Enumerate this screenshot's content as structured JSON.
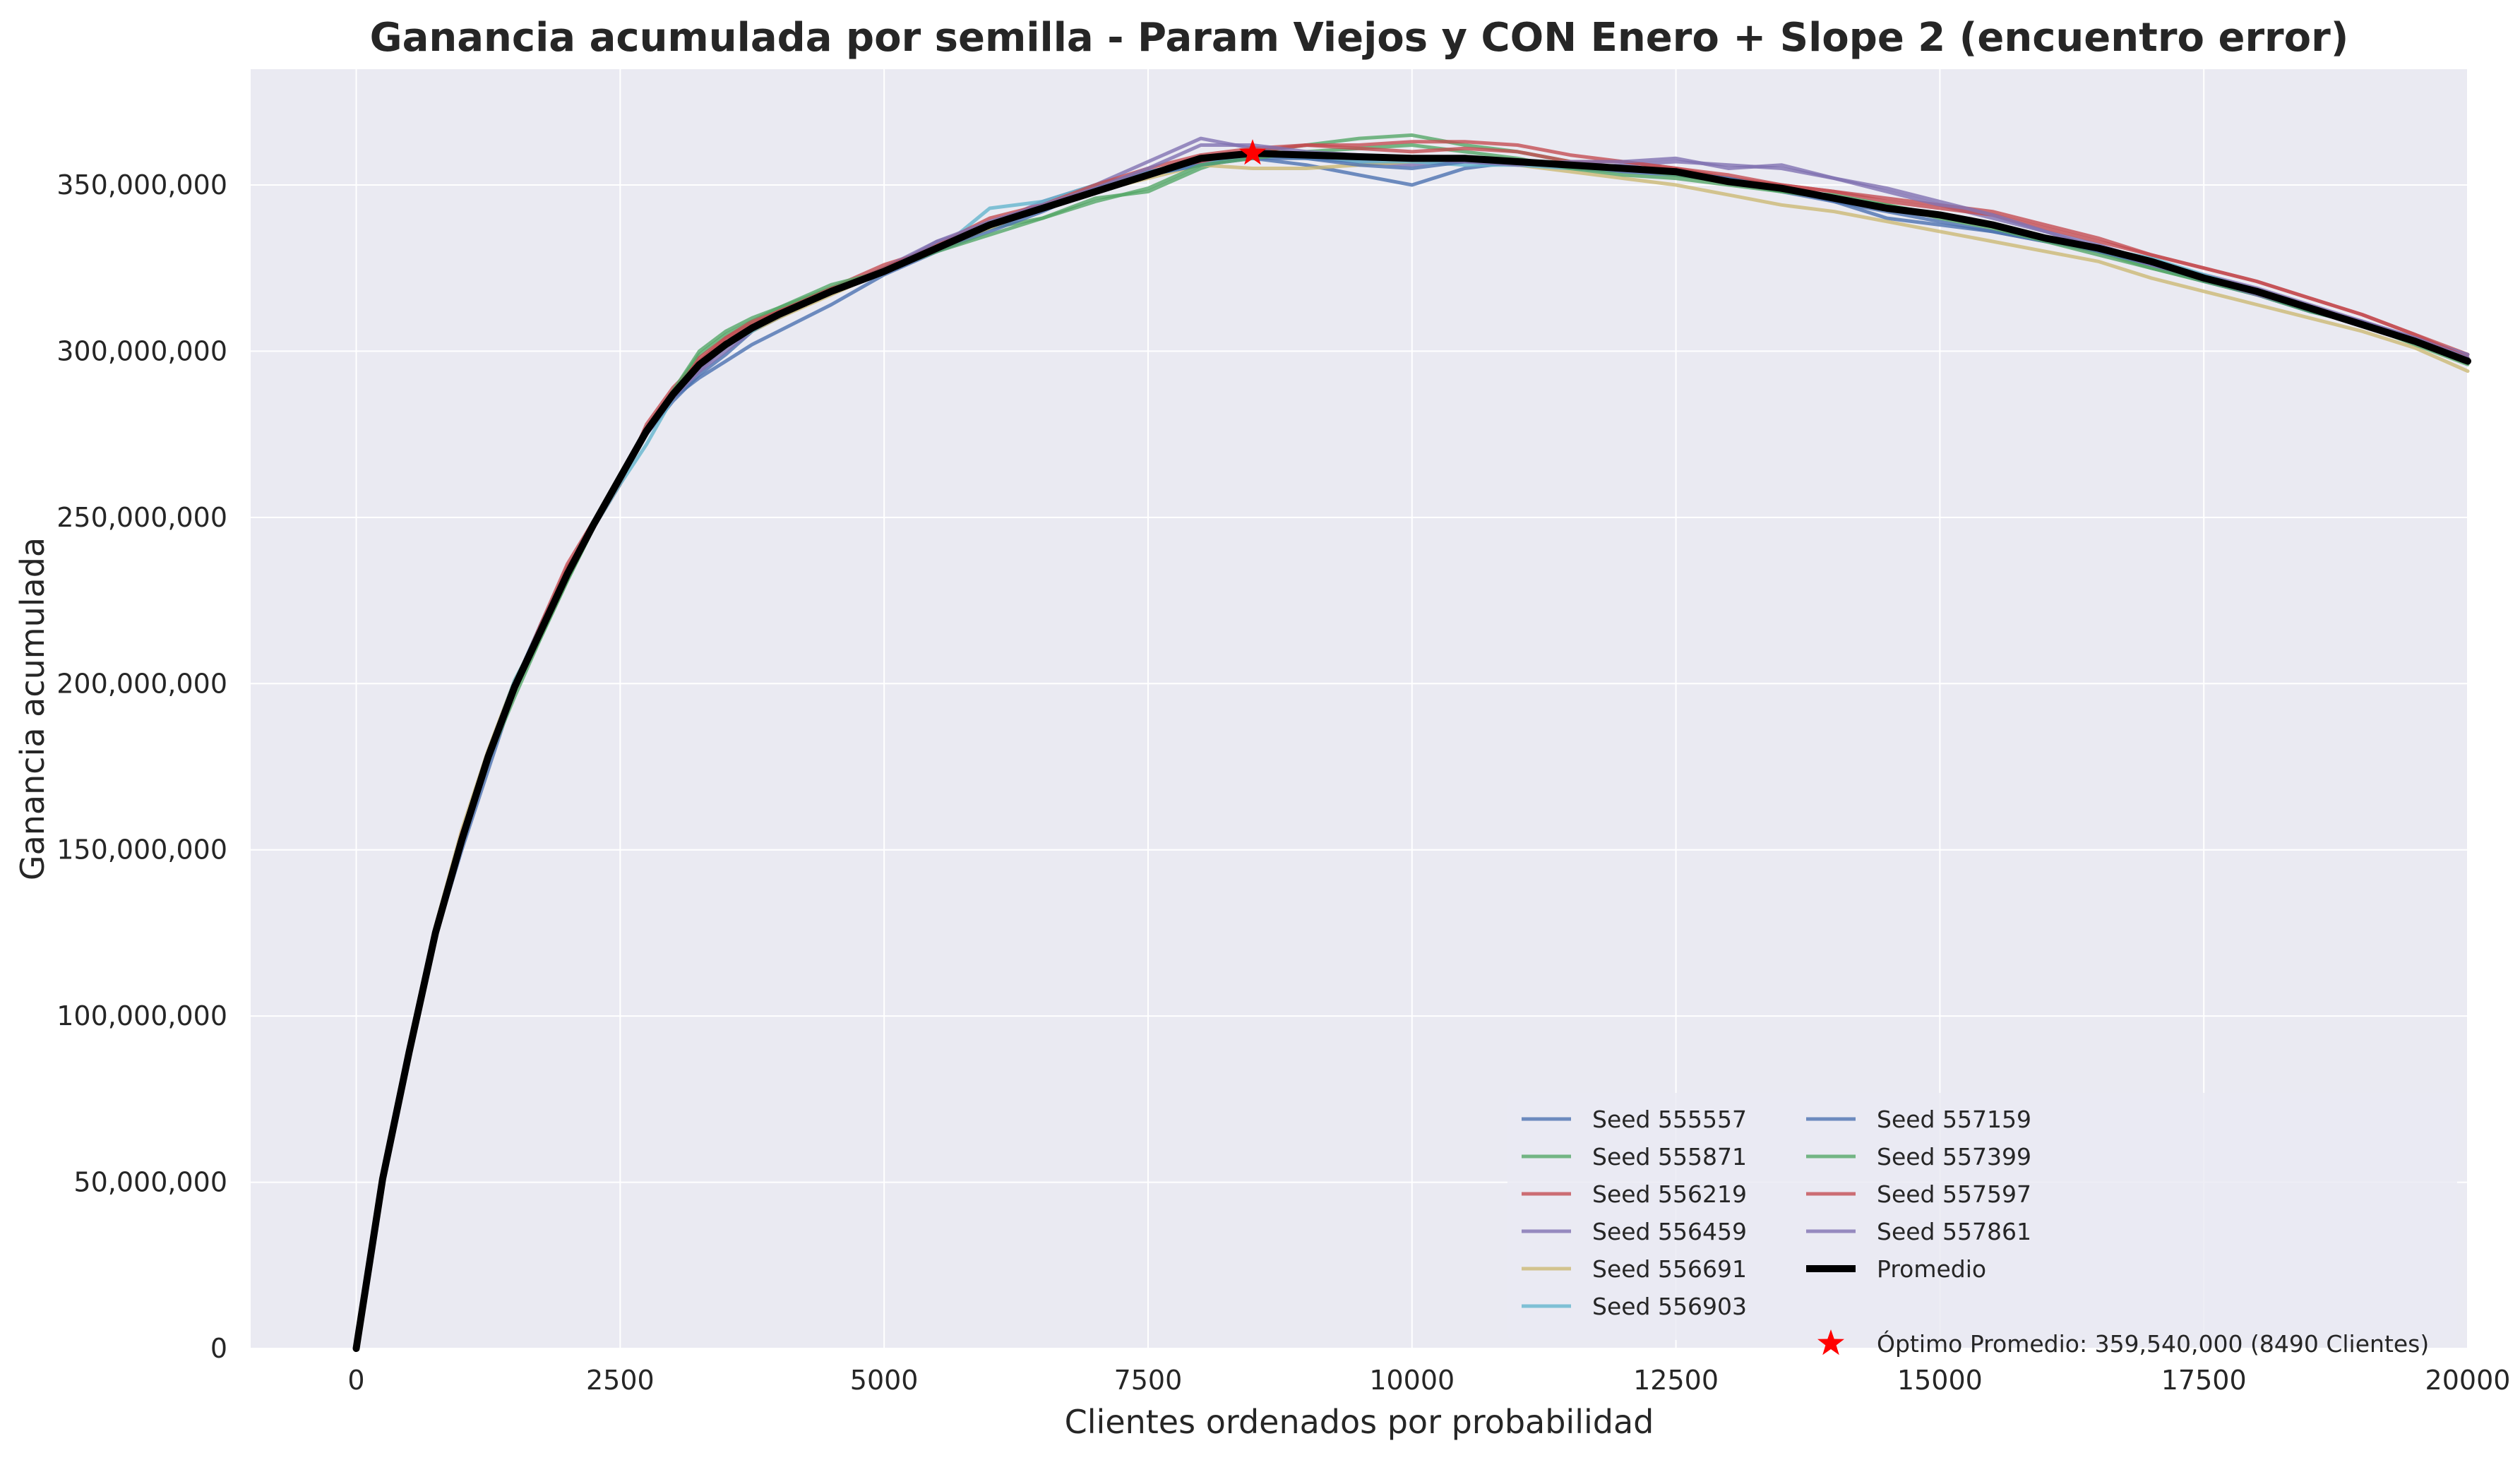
{
  "chart_data": {
    "type": "line",
    "title": "Ganancia acumulada por semilla - Param Viejos y CON Enero + Slope 2 (encuentro error)",
    "xlabel": "Clientes ordenados por probabilidad",
    "ylabel": "Ganancia acumulada",
    "xlim": [
      -1000,
      20000
    ],
    "ylim": [
      0,
      350000000
    ],
    "x_ticks": [
      0,
      2500,
      5000,
      7500,
      10000,
      12500,
      15000,
      17500,
      20000
    ],
    "x_tick_labels": [
      "0",
      "2500",
      "5000",
      "7500",
      "10000",
      "12500",
      "15000",
      "17500",
      "20000"
    ],
    "y_ticks": [
      0,
      50000000,
      100000000,
      150000000,
      200000000,
      250000000,
      300000000,
      350000000
    ],
    "y_tick_labels": [
      "0",
      "50,000,000",
      "100,000,000",
      "150,000,000",
      "200,000,000",
      "250,000,000",
      "300,000,000",
      "350,000,000"
    ],
    "grid": true,
    "legend_position": "lower-right",
    "legend_columns": 2,
    "x": [
      0,
      250,
      500,
      750,
      1000,
      1250,
      1500,
      1750,
      2000,
      2250,
      2500,
      2750,
      3000,
      3250,
      3500,
      3750,
      4000,
      4500,
      5000,
      5500,
      6000,
      6500,
      7000,
      7500,
      8000,
      8490,
      9000,
      9500,
      10000,
      10500,
      11000,
      11500,
      12000,
      12500,
      13000,
      13500,
      14000,
      14500,
      15000,
      15500,
      16000,
      16500,
      17000,
      17500,
      18000,
      18500,
      19000,
      19500,
      20000
    ],
    "series": [
      {
        "name": "Seed 555557",
        "color": "#4c72b0",
        "values": [
          0,
          50000000,
          88000000,
          125000000,
          153000000,
          178000000,
          200000000,
          218000000,
          234000000,
          249000000,
          262000000,
          275000000,
          285000000,
          293000000,
          299000000,
          306000000,
          310000000,
          318000000,
          325000000,
          330000000,
          338000000,
          343000000,
          350000000,
          354000000,
          357000000,
          358000000,
          356000000,
          353000000,
          350000000,
          355000000,
          357000000,
          355000000,
          354000000,
          353000000,
          351000000,
          348000000,
          345000000,
          340000000,
          338000000,
          336000000,
          333000000,
          331000000,
          326000000,
          321000000,
          317000000,
          312000000,
          309000000,
          303000000,
          298000000
        ]
      },
      {
        "name": "Seed 555871",
        "color": "#55a868",
        "values": [
          0,
          51000000,
          87000000,
          126000000,
          152000000,
          176000000,
          198000000,
          214000000,
          231000000,
          247000000,
          261000000,
          277000000,
          288000000,
          299000000,
          305000000,
          309000000,
          313000000,
          319000000,
          324000000,
          330000000,
          337000000,
          340000000,
          346000000,
          348000000,
          355000000,
          360000000,
          362000000,
          364000000,
          365000000,
          362000000,
          360000000,
          357000000,
          355000000,
          353000000,
          351000000,
          348000000,
          346000000,
          344000000,
          341000000,
          338000000,
          334000000,
          330000000,
          325000000,
          321000000,
          318000000,
          313000000,
          308000000,
          303000000,
          298000000
        ]
      },
      {
        "name": "Seed 556219",
        "color": "#c44e52",
        "values": [
          0,
          52000000,
          91000000,
          124000000,
          154000000,
          178000000,
          200000000,
          217000000,
          235000000,
          247000000,
          260000000,
          278000000,
          289000000,
          297000000,
          304000000,
          309000000,
          312000000,
          319000000,
          326000000,
          331000000,
          338000000,
          343000000,
          350000000,
          353000000,
          357000000,
          360000000,
          362000000,
          362000000,
          363000000,
          363000000,
          362000000,
          359000000,
          357000000,
          355000000,
          352000000,
          350000000,
          348000000,
          346000000,
          344000000,
          342000000,
          338000000,
          334000000,
          329000000,
          325000000,
          321000000,
          316000000,
          311000000,
          305000000,
          299000000
        ]
      },
      {
        "name": "Seed 556459",
        "color": "#8172b2",
        "values": [
          0,
          50000000,
          89000000,
          125000000,
          152000000,
          177000000,
          199000000,
          217000000,
          233000000,
          248000000,
          262000000,
          276000000,
          287000000,
          294000000,
          300000000,
          306000000,
          311000000,
          318000000,
          325000000,
          333000000,
          338000000,
          345000000,
          350000000,
          357000000,
          364000000,
          361000000,
          358000000,
          357000000,
          356000000,
          358000000,
          356000000,
          355000000,
          356000000,
          357000000,
          356000000,
          355000000,
          352000000,
          348000000,
          344000000,
          340000000,
          336000000,
          332000000,
          327000000,
          323000000,
          319000000,
          314000000,
          309000000,
          304000000,
          299000000
        ]
      },
      {
        "name": "Seed 556691",
        "color": "#ccb974",
        "values": [
          0,
          53000000,
          90000000,
          127000000,
          156000000,
          180000000,
          201000000,
          216000000,
          232000000,
          249000000,
          263000000,
          276000000,
          286000000,
          296000000,
          302000000,
          306000000,
          310000000,
          317000000,
          324000000,
          330000000,
          337000000,
          343000000,
          348000000,
          352000000,
          356000000,
          355000000,
          355000000,
          356000000,
          357000000,
          358000000,
          356000000,
          354000000,
          352000000,
          350000000,
          347000000,
          344000000,
          342000000,
          339000000,
          336000000,
          333000000,
          330000000,
          327000000,
          322000000,
          318000000,
          314000000,
          310000000,
          306000000,
          301000000,
          294000000
        ]
      },
      {
        "name": "Seed 556903",
        "color": "#64b5cd",
        "values": [
          0,
          50000000,
          88000000,
          125000000,
          153000000,
          179000000,
          201000000,
          216000000,
          233000000,
          247000000,
          260000000,
          272000000,
          286000000,
          296000000,
          302000000,
          306000000,
          311000000,
          318000000,
          325000000,
          330000000,
          343000000,
          345000000,
          350000000,
          353000000,
          356000000,
          359000000,
          358000000,
          357000000,
          357000000,
          356000000,
          356000000,
          355000000,
          355000000,
          354000000,
          352000000,
          349000000,
          346000000,
          343000000,
          341000000,
          338000000,
          334000000,
          331000000,
          328000000,
          323000000,
          318000000,
          313000000,
          308000000,
          303000000,
          298000000
        ]
      },
      {
        "name": "Seed 557159",
        "color": "#4c72b0",
        "values": [
          0,
          50000000,
          88000000,
          124000000,
          150000000,
          174000000,
          198000000,
          216000000,
          233000000,
          248000000,
          262000000,
          275000000,
          286000000,
          292000000,
          297000000,
          302000000,
          306000000,
          314000000,
          323000000,
          330000000,
          336000000,
          342000000,
          349000000,
          353000000,
          356000000,
          358000000,
          358000000,
          356000000,
          355000000,
          357000000,
          357000000,
          356000000,
          355000000,
          354000000,
          352000000,
          349000000,
          345000000,
          342000000,
          339000000,
          336000000,
          333000000,
          330000000,
          326000000,
          321000000,
          317000000,
          312000000,
          308000000,
          303000000,
          297000000
        ]
      },
      {
        "name": "Seed 557399",
        "color": "#55a868",
        "values": [
          0,
          51000000,
          88000000,
          126000000,
          153000000,
          177000000,
          196000000,
          214000000,
          231000000,
          247000000,
          262000000,
          276000000,
          288000000,
          300000000,
          306000000,
          310000000,
          313000000,
          320000000,
          324000000,
          330000000,
          335000000,
          340000000,
          345000000,
          349000000,
          356000000,
          358000000,
          360000000,
          361000000,
          362000000,
          360000000,
          358000000,
          355000000,
          353000000,
          352000000,
          350000000,
          348000000,
          347000000,
          344000000,
          340000000,
          337000000,
          333000000,
          329000000,
          325000000,
          321000000,
          317000000,
          312000000,
          308000000,
          302000000,
          296000000
        ]
      },
      {
        "name": "Seed 557597",
        "color": "#c44e52",
        "values": [
          0,
          52000000,
          90000000,
          126000000,
          155000000,
          178000000,
          199000000,
          218000000,
          236000000,
          249000000,
          261000000,
          276000000,
          286000000,
          298000000,
          304000000,
          308000000,
          312000000,
          318000000,
          325000000,
          332000000,
          340000000,
          344000000,
          350000000,
          355000000,
          359000000,
          361000000,
          362000000,
          361000000,
          360000000,
          361000000,
          360000000,
          357000000,
          357000000,
          355000000,
          353000000,
          350000000,
          348000000,
          345000000,
          343000000,
          341000000,
          337000000,
          333000000,
          329000000,
          325000000,
          321000000,
          316000000,
          311000000,
          305000000,
          298000000
        ]
      },
      {
        "name": "Seed 557861",
        "color": "#8172b2",
        "values": [
          0,
          50000000,
          89000000,
          125000000,
          153000000,
          178000000,
          200000000,
          217000000,
          233000000,
          249000000,
          262000000,
          275000000,
          286000000,
          294000000,
          302000000,
          307000000,
          311000000,
          318000000,
          324000000,
          333000000,
          339000000,
          344000000,
          349000000,
          355000000,
          362000000,
          362000000,
          360000000,
          359000000,
          358000000,
          357000000,
          356000000,
          357000000,
          357000000,
          358000000,
          355000000,
          356000000,
          352000000,
          349000000,
          345000000,
          341000000,
          336000000,
          331000000,
          326000000,
          322000000,
          317000000,
          313000000,
          309000000,
          304000000,
          298000000
        ]
      },
      {
        "name": "Promedio",
        "color": "#000000",
        "values": [
          0,
          51000000,
          89000000,
          125000000,
          153000000,
          178000000,
          199000000,
          216000000,
          233000000,
          248000000,
          262000000,
          276000000,
          287000000,
          296000000,
          302000000,
          307000000,
          311000000,
          318000000,
          324000000,
          331000000,
          338000000,
          343000000,
          348000000,
          353000000,
          358000000,
          359540000,
          359000000,
          358500000,
          358000000,
          358000000,
          357000000,
          356000000,
          355000000,
          354000000,
          351000000,
          349000000,
          346000000,
          343000000,
          341000000,
          338000000,
          334000000,
          331000000,
          327000000,
          322000000,
          318000000,
          313000000,
          308000000,
          303000000,
          297000000
        ]
      }
    ],
    "optimum": {
      "x": 8490,
      "y": 359540000,
      "label": "Óptimo Promedio: 359,540,000 (8490 Clientes)",
      "color": "#ff0000"
    }
  }
}
